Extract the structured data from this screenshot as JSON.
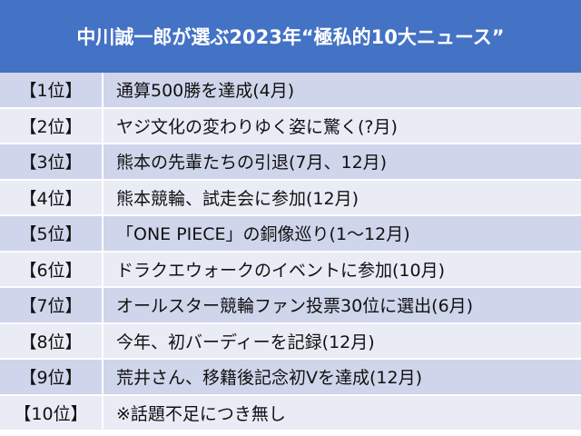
{
  "title": "中川誠一郎が選ぶ2023年“極私的10大ニュース”",
  "rows": [
    {
      "rank": "【1位】",
      "news": "通算500勝を達成(4月)"
    },
    {
      "rank": "【2位】",
      "news": "ヤジ文化の変わりゆく姿に驚く(?月)"
    },
    {
      "rank": "【3位】",
      "news": "熊本の先輩たちの引退(7月、12月)"
    },
    {
      "rank": "【4位】",
      "news": "熊本競輪、試走会に参加(12月)"
    },
    {
      "rank": "【5位】",
      "news": "「ONE PIECE」の銅像巡り(1～12月)"
    },
    {
      "rank": "【6位】",
      "news": "ドラクエウォークのイベントに参加(10月)"
    },
    {
      "rank": "【7位】",
      "news": "オールスター競輪ファン投票30位に選出(6月)"
    },
    {
      "rank": "【8位】",
      "news": "今年、初バーディーを記録(12月)"
    },
    {
      "rank": "【9位】",
      "news": "荒井さん、移籍後記念初Vを達成(12月)"
    },
    {
      "rank": "【10位】",
      "news": "※話題不足につき無し"
    }
  ],
  "colors": {
    "header": "#4472c4",
    "row_dark": "#cfd5ea",
    "row_light": "#e9ebf5"
  }
}
